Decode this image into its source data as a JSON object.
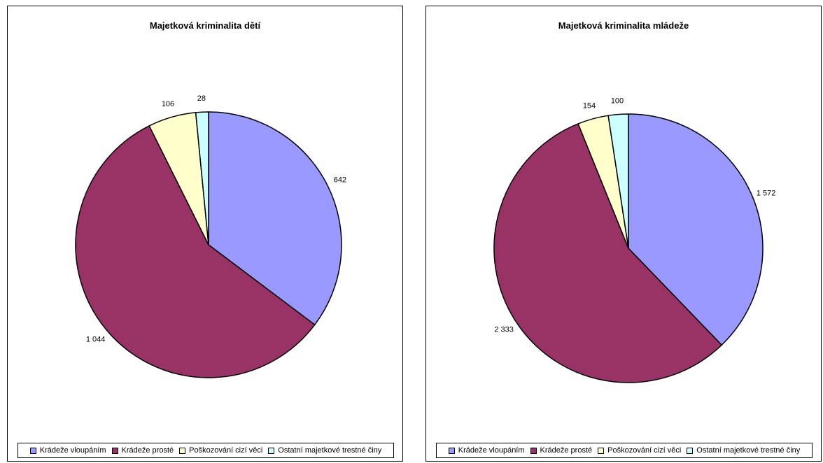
{
  "chart_data": [
    {
      "type": "pie",
      "title": "Majetková kriminalita dětí",
      "categories": [
        "Krádeže vloupáním",
        "Krádeže prosté",
        "Poškozování cizí věci",
        "Ostatní majetkové trestné činy"
      ],
      "values": [
        642,
        1044,
        106,
        28
      ],
      "data_labels": [
        "642",
        "1 044",
        "106",
        "28"
      ],
      "colors": [
        "#9999FF",
        "#993366",
        "#FFFFCC",
        "#CCFFFF"
      ],
      "legend_position": "bottom"
    },
    {
      "type": "pie",
      "title": "Majetková kriminalita mládeže",
      "categories": [
        "Krádeže vloupáním",
        "Krádeže prosté",
        "Poškozování cizí věci",
        "Ostatní majetkové trestné činy"
      ],
      "values": [
        1572,
        2333,
        154,
        100
      ],
      "data_labels": [
        "1 572",
        "2 333",
        "154",
        "100"
      ],
      "colors": [
        "#9999FF",
        "#993366",
        "#FFFFCC",
        "#CCFFFF"
      ],
      "legend_position": "bottom"
    }
  ]
}
